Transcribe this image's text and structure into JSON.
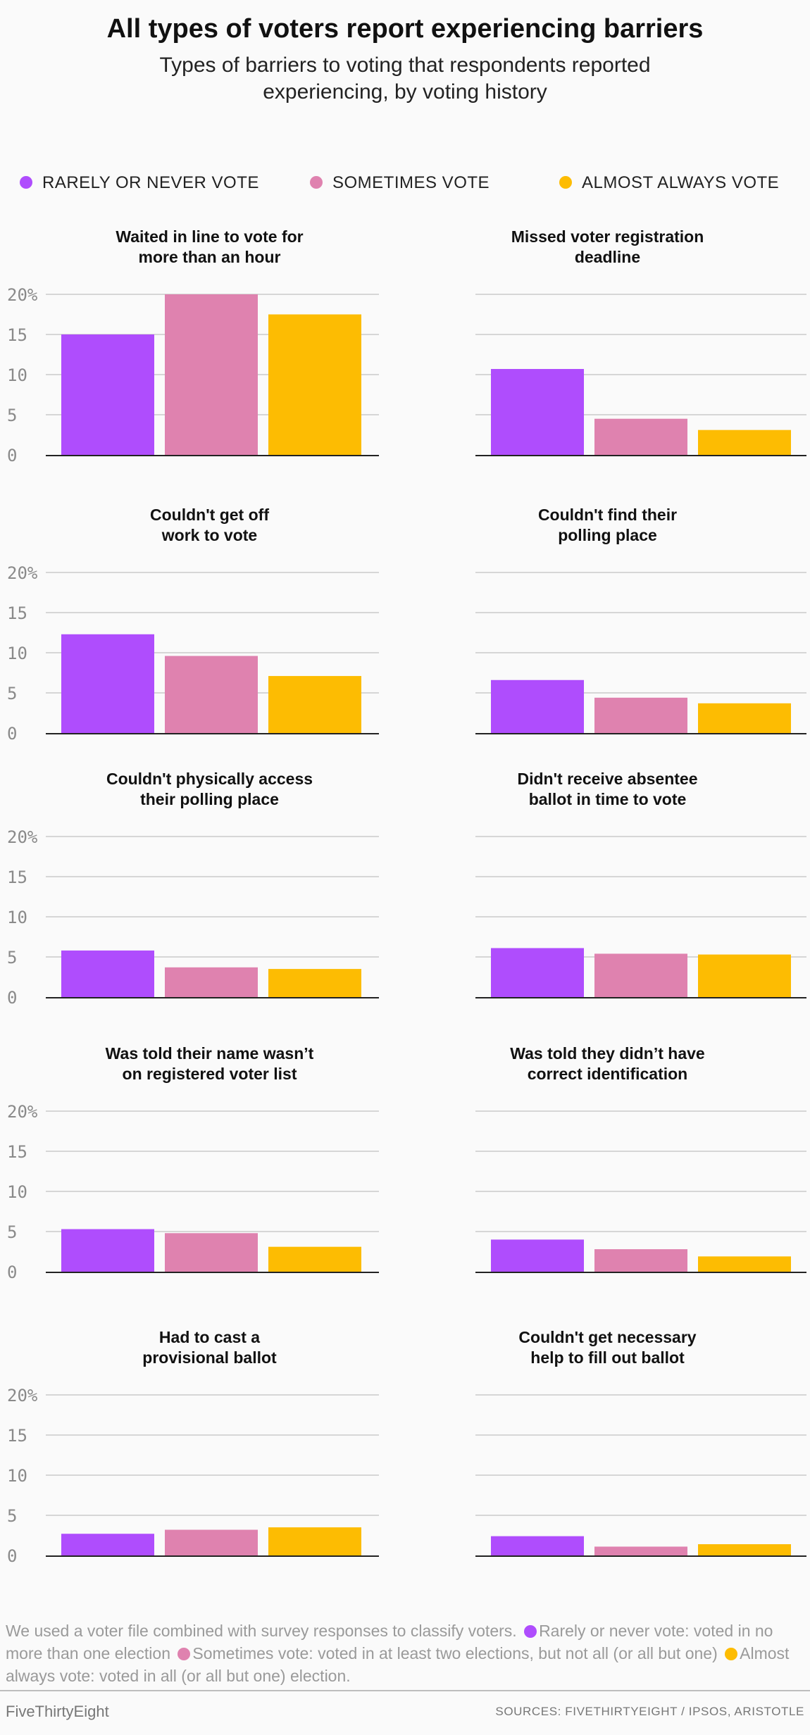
{
  "header": {
    "title": "All types of voters report experiencing barriers",
    "subtitle": "Types of barriers to voting that respondents reported experiencing, by voting history"
  },
  "legend": [
    {
      "label": "RARELY OR NEVER VOTE",
      "color": "#af4dfd"
    },
    {
      "label": "SOMETIMES VOTE",
      "color": "#df82af"
    },
    {
      "label": "ALMOST ALWAYS VOTE",
      "color": "#fdbc02"
    }
  ],
  "chart_data": [
    {
      "type": "bar",
      "title": "Waited in line to vote for more than an hour",
      "title_lines": [
        "Waited in line to vote for",
        "more than an hour"
      ],
      "categories": [
        "Rarely or never vote",
        "Sometimes vote",
        "Almost always vote"
      ],
      "values": [
        15,
        20,
        17.5
      ],
      "ylim": [
        0,
        20
      ],
      "yticks": [
        0,
        5,
        10,
        15,
        20
      ],
      "ytick_labels": [
        "0",
        "5",
        "10",
        "15",
        "20%"
      ]
    },
    {
      "type": "bar",
      "title": "Missed voter registration deadline",
      "title_lines": [
        "Missed voter registration",
        "deadline"
      ],
      "categories": [
        "Rarely or never vote",
        "Sometimes vote",
        "Almost always vote"
      ],
      "values": [
        10.7,
        4.5,
        3.1
      ],
      "ylim": [
        0,
        20
      ],
      "yticks": [
        0,
        5,
        10,
        15,
        20
      ]
    },
    {
      "type": "bar",
      "title": "Couldn't get off work to vote",
      "title_lines": [
        "Couldn't get off",
        "work to vote"
      ],
      "categories": [
        "Rarely or never vote",
        "Sometimes vote",
        "Almost always vote"
      ],
      "values": [
        12.3,
        9.6,
        7.1
      ],
      "ylim": [
        0,
        20
      ],
      "yticks": [
        0,
        5,
        10,
        15,
        20
      ],
      "ytick_labels": [
        "0",
        "5",
        "10",
        "15",
        "20%"
      ]
    },
    {
      "type": "bar",
      "title": "Couldn't find their polling place",
      "title_lines": [
        "Couldn't find their",
        "polling place"
      ],
      "categories": [
        "Rarely or never vote",
        "Sometimes vote",
        "Almost always vote"
      ],
      "values": [
        6.6,
        4.4,
        3.7
      ],
      "ylim": [
        0,
        20
      ],
      "yticks": [
        0,
        5,
        10,
        15,
        20
      ]
    },
    {
      "type": "bar",
      "title": "Couldn't physically access their polling place",
      "title_lines": [
        "Couldn't physically access",
        "their polling place"
      ],
      "categories": [
        "Rarely or never vote",
        "Sometimes vote",
        "Almost always vote"
      ],
      "values": [
        5.8,
        3.7,
        3.5
      ],
      "ylim": [
        0,
        20
      ],
      "yticks": [
        0,
        5,
        10,
        15,
        20
      ],
      "ytick_labels": [
        "0",
        "5",
        "10",
        "15",
        "20%"
      ]
    },
    {
      "type": "bar",
      "title": "Didn't receive absentee ballot in time to vote",
      "title_lines": [
        "Didn't receive absentee",
        "ballot in time to vote"
      ],
      "categories": [
        "Rarely or never vote",
        "Sometimes vote",
        "Almost always vote"
      ],
      "values": [
        6.1,
        5.4,
        5.3
      ],
      "ylim": [
        0,
        20
      ],
      "yticks": [
        0,
        5,
        10,
        15,
        20
      ]
    },
    {
      "type": "bar",
      "title": "Was told their name wasn’t on registered voter list",
      "title_lines": [
        "Was told their name wasn’t",
        "on registered voter list"
      ],
      "categories": [
        "Rarely or never vote",
        "Sometimes vote",
        "Almost always vote"
      ],
      "values": [
        5.3,
        4.8,
        3.1
      ],
      "ylim": [
        0,
        20
      ],
      "yticks": [
        0,
        5,
        10,
        15,
        20
      ],
      "ytick_labels": [
        "0",
        "5",
        "10",
        "15",
        "20%"
      ]
    },
    {
      "type": "bar",
      "title": "Was told they didn’t have correct identification",
      "title_lines": [
        "Was told they didn’t have",
        "correct identification"
      ],
      "categories": [
        "Rarely or never vote",
        "Sometimes vote",
        "Almost always vote"
      ],
      "values": [
        4.0,
        2.8,
        1.9
      ],
      "ylim": [
        0,
        20
      ],
      "yticks": [
        0,
        5,
        10,
        15,
        20
      ]
    },
    {
      "type": "bar",
      "title": "Had to cast a provisional ballot",
      "title_lines": [
        "Had to cast a",
        "provisional ballot"
      ],
      "categories": [
        "Rarely or never vote",
        "Sometimes vote",
        "Almost always vote"
      ],
      "values": [
        2.7,
        3.2,
        3.5
      ],
      "ylim": [
        0,
        20
      ],
      "yticks": [
        0,
        5,
        10,
        15,
        20
      ],
      "ytick_labels": [
        "0",
        "5",
        "10",
        "15",
        "20%"
      ]
    },
    {
      "type": "bar",
      "title": "Couldn't get necessary help to fill out ballot",
      "title_lines": [
        "Couldn't get necessary",
        "help to fill out ballot"
      ],
      "categories": [
        "Rarely or never vote",
        "Sometimes vote",
        "Almost always vote"
      ],
      "values": [
        2.4,
        1.1,
        1.4
      ],
      "ylim": [
        0,
        20
      ],
      "yticks": [
        0,
        5,
        10,
        15,
        20
      ]
    }
  ],
  "footnote": {
    "intro": "We used a voter file combined with survey responses to classify voters.",
    "rarely": "Rarely or never vote: voted in no more than one election",
    "sometimes": "Sometimes vote: voted in at least two elections, but not all (or all but one)",
    "always": "Almost always vote: voted in all (or all but one) election."
  },
  "footer": {
    "brand": "FiveThirtyEight",
    "sources": "SOURCES: FIVETHIRTYEIGHT / IPSOS, ARISTOTLE"
  }
}
